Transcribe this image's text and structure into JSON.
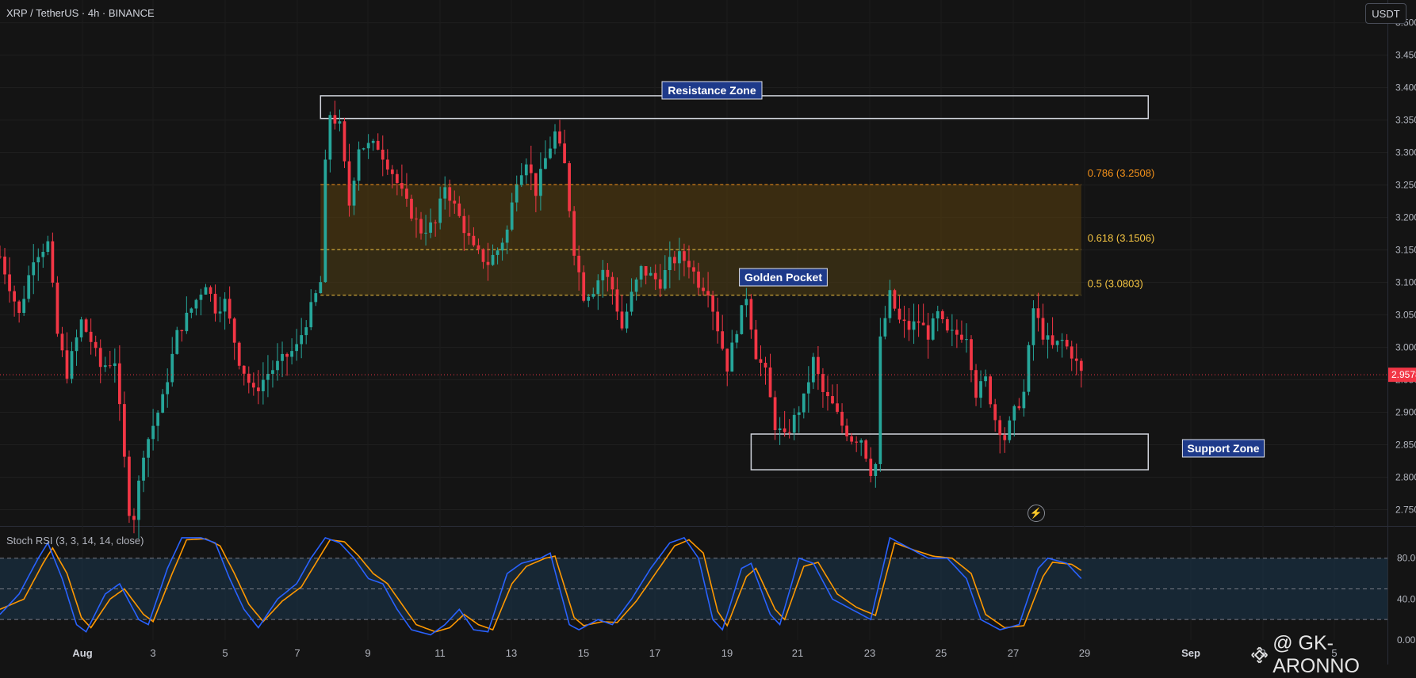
{
  "header": {
    "symbol_title": "XRP / TetherUS · 4h · BINANCE",
    "currency_button": "USDT"
  },
  "watermark": {
    "text": "@ GK-ARONNO"
  },
  "colors": {
    "up": "#26a69a",
    "down": "#f23645",
    "background": "#141414",
    "stoch_k": "#2962ff",
    "stoch_d": "#ff9800",
    "annotation_fill": "#1e3a8a"
  },
  "chart_data": [
    {
      "type": "candlestick",
      "title": "XRP / TetherUS · 4h · BINANCE",
      "x_ticks": [
        "Aug",
        "3",
        "5",
        "7",
        "9",
        "11",
        "13",
        "15",
        "17",
        "19",
        "21",
        "23",
        "25",
        "27",
        "29",
        "Sep",
        "3",
        "5"
      ],
      "y_ticks": [
        "3.5000",
        "3.4500",
        "3.4000",
        "3.3500",
        "3.3000",
        "3.2500",
        "3.2000",
        "3.1500",
        "3.1000",
        "3.0500",
        "3.0000",
        "2.9500",
        "2.9000",
        "2.8500",
        "2.8000",
        "2.7500"
      ],
      "ylim": [
        2.725,
        3.535
      ],
      "last_price": "2.9578",
      "anchors": [
        [
          0,
          3.14
        ],
        [
          4,
          3.05
        ],
        [
          7,
          3.14
        ],
        [
          10,
          3.16
        ],
        [
          12,
          3.02
        ],
        [
          14,
          2.96
        ],
        [
          17,
          3.04
        ],
        [
          19,
          3.01
        ],
        [
          21,
          2.97
        ],
        [
          24,
          2.98
        ],
        [
          27,
          2.75
        ],
        [
          28,
          2.74
        ],
        [
          30,
          2.84
        ],
        [
          34,
          2.92
        ],
        [
          37,
          3.02
        ],
        [
          40,
          3.06
        ],
        [
          43,
          3.1
        ],
        [
          45,
          3.06
        ],
        [
          47,
          3.07
        ],
        [
          50,
          2.98
        ],
        [
          53,
          2.93
        ],
        [
          56,
          2.96
        ],
        [
          59,
          2.98
        ],
        [
          62,
          3.0
        ],
        [
          65,
          3.06
        ],
        [
          67,
          3.1
        ],
        [
          68,
          3.28
        ],
        [
          69,
          3.36
        ],
        [
          71,
          3.34
        ],
        [
          73,
          3.22
        ],
        [
          75,
          3.31
        ],
        [
          79,
          3.31
        ],
        [
          82,
          3.27
        ],
        [
          85,
          3.22
        ],
        [
          88,
          3.18
        ],
        [
          91,
          3.19
        ],
        [
          93,
          3.25
        ],
        [
          96,
          3.2
        ],
        [
          99,
          3.15
        ],
        [
          102,
          3.13
        ],
        [
          104,
          3.15
        ],
        [
          106,
          3.18
        ],
        [
          108,
          3.26
        ],
        [
          110,
          3.29
        ],
        [
          112,
          3.24
        ],
        [
          114,
          3.29
        ],
        [
          116,
          3.33
        ],
        [
          118,
          3.28
        ],
        [
          120,
          3.15
        ],
        [
          122,
          3.08
        ],
        [
          124,
          3.09
        ],
        [
          126,
          3.12
        ],
        [
          128,
          3.09
        ],
        [
          130,
          3.03
        ],
        [
          132,
          3.08
        ],
        [
          134,
          3.12
        ],
        [
          136,
          3.11
        ],
        [
          138,
          3.1
        ],
        [
          140,
          3.13
        ],
        [
          142,
          3.14
        ],
        [
          144,
          3.13
        ],
        [
          146,
          3.1
        ],
        [
          148,
          3.09
        ],
        [
          150,
          3.03
        ],
        [
          152,
          2.97
        ],
        [
          154,
          3.03
        ],
        [
          156,
          3.08
        ],
        [
          158,
          2.99
        ],
        [
          160,
          2.96
        ],
        [
          162,
          2.88
        ],
        [
          164,
          2.86
        ],
        [
          166,
          2.89
        ],
        [
          168,
          2.92
        ],
        [
          170,
          2.98
        ],
        [
          172,
          2.93
        ],
        [
          174,
          2.91
        ],
        [
          176,
          2.88
        ],
        [
          178,
          2.86
        ],
        [
          180,
          2.86
        ],
        [
          182,
          2.81
        ],
        [
          183,
          2.82
        ],
        [
          184,
          3.01
        ],
        [
          186,
          3.08
        ],
        [
          188,
          3.04
        ],
        [
          190,
          3.03
        ],
        [
          192,
          3.04
        ],
        [
          194,
          3.02
        ],
        [
          196,
          3.05
        ],
        [
          198,
          3.02
        ],
        [
          200,
          3.02
        ],
        [
          202,
          3.02
        ],
        [
          204,
          2.93
        ],
        [
          206,
          2.95
        ],
        [
          208,
          2.89
        ],
        [
          210,
          2.86
        ],
        [
          212,
          2.9
        ],
        [
          214,
          2.93
        ],
        [
          216,
          3.06
        ],
        [
          218,
          3.02
        ],
        [
          220,
          3.0
        ],
        [
          222,
          3.01
        ],
        [
          224,
          2.99
        ],
        [
          226,
          2.96
        ]
      ],
      "zones": [
        {
          "label": "Resistance Zone",
          "top": 3.3875,
          "bottom": 3.3525,
          "from_index": 67,
          "to_index": 240
        },
        {
          "label": "Support Zone",
          "top": 2.8665,
          "bottom": 2.8115,
          "from_index": 157,
          "to_index": 240
        },
        {
          "label": "Golden Pocket",
          "top": 3.1506,
          "bottom": 3.0803,
          "from_index": 67,
          "to_index": 226
        }
      ],
      "fib_levels": [
        {
          "label": "0.786 (3.2508)",
          "value": 3.2508,
          "color": "#f7931a"
        },
        {
          "label": "0.618 (3.1506)",
          "value": 3.1506,
          "color": "#f5c542"
        },
        {
          "label": "0.5 (3.0803)",
          "value": 3.0803,
          "color": "#f5c542"
        }
      ],
      "x_range": [
        0,
        290
      ]
    },
    {
      "type": "line",
      "title": "Stoch RSI (3, 3, 14, 14, close)",
      "y_ticks": [
        "80.00",
        "40.00",
        "0.00"
      ],
      "ylim": [
        0,
        110
      ],
      "bands": {
        "upper": 80,
        "middle": 50,
        "lower": 20
      },
      "series": [
        {
          "k_anchors": [
            [
              0,
              25
            ],
            [
              4,
              45
            ],
            [
              8,
              80
            ],
            [
              10,
              95
            ],
            [
              13,
              60
            ],
            [
              16,
              15
            ],
            [
              18,
              8
            ],
            [
              22,
              45
            ],
            [
              25,
              55
            ],
            [
              29,
              20
            ],
            [
              31,
              15
            ],
            [
              35,
              70
            ],
            [
              38,
              100
            ],
            [
              42,
              100
            ],
            [
              45,
              95
            ],
            [
              48,
              60
            ],
            [
              51,
              30
            ],
            [
              54,
              12
            ],
            [
              58,
              40
            ],
            [
              62,
              55
            ],
            [
              65,
              80
            ],
            [
              68,
              100
            ],
            [
              71,
              95
            ],
            [
              74,
              80
            ],
            [
              77,
              60
            ],
            [
              80,
              55
            ],
            [
              83,
              30
            ],
            [
              86,
              10
            ],
            [
              90,
              5
            ],
            [
              93,
              15
            ],
            [
              96,
              30
            ],
            [
              99,
              10
            ],
            [
              102,
              8
            ],
            [
              106,
              65
            ],
            [
              109,
              75
            ],
            [
              113,
              80
            ],
            [
              115,
              85
            ],
            [
              119,
              15
            ],
            [
              121,
              10
            ],
            [
              125,
              20
            ],
            [
              128,
              15
            ],
            [
              132,
              40
            ],
            [
              136,
              70
            ],
            [
              140,
              95
            ],
            [
              143,
              100
            ],
            [
              146,
              80
            ],
            [
              149,
              20
            ],
            [
              151,
              10
            ],
            [
              155,
              70
            ],
            [
              157,
              75
            ],
            [
              161,
              25
            ],
            [
              163,
              15
            ],
            [
              167,
              80
            ],
            [
              170,
              75
            ],
            [
              174,
              40
            ],
            [
              178,
              30
            ],
            [
              182,
              20
            ],
            [
              186,
              100
            ],
            [
              190,
              90
            ],
            [
              194,
              80
            ],
            [
              198,
              80
            ],
            [
              202,
              60
            ],
            [
              205,
              20
            ],
            [
              209,
              10
            ],
            [
              213,
              15
            ],
            [
              217,
              70
            ],
            [
              219,
              80
            ],
            [
              223,
              75
            ],
            [
              226,
              60
            ]
          ]
        },
        {
          "d_anchors": [
            [
              0,
              30
            ],
            [
              5,
              40
            ],
            [
              9,
              75
            ],
            [
              11,
              90
            ],
            [
              14,
              65
            ],
            [
              17,
              22
            ],
            [
              19,
              12
            ],
            [
              23,
              40
            ],
            [
              26,
              50
            ],
            [
              30,
              25
            ],
            [
              32,
              18
            ],
            [
              36,
              65
            ],
            [
              39,
              98
            ],
            [
              43,
              99
            ],
            [
              46,
              92
            ],
            [
              49,
              65
            ],
            [
              52,
              35
            ],
            [
              55,
              18
            ],
            [
              59,
              38
            ],
            [
              63,
              52
            ],
            [
              66,
              75
            ],
            [
              69,
              98
            ],
            [
              72,
              96
            ],
            [
              75,
              82
            ],
            [
              78,
              65
            ],
            [
              81,
              55
            ],
            [
              84,
              35
            ],
            [
              87,
              15
            ],
            [
              91,
              8
            ],
            [
              94,
              12
            ],
            [
              97,
              25
            ],
            [
              100,
              15
            ],
            [
              103,
              10
            ],
            [
              107,
              55
            ],
            [
              110,
              72
            ],
            [
              114,
              80
            ],
            [
              116,
              82
            ],
            [
              120,
              22
            ],
            [
              122,
              14
            ],
            [
              126,
              18
            ],
            [
              129,
              17
            ],
            [
              133,
              38
            ],
            [
              137,
              65
            ],
            [
              141,
              92
            ],
            [
              144,
              98
            ],
            [
              147,
              85
            ],
            [
              150,
              28
            ],
            [
              152,
              14
            ],
            [
              156,
              62
            ],
            [
              158,
              70
            ],
            [
              162,
              30
            ],
            [
              164,
              20
            ],
            [
              168,
              72
            ],
            [
              171,
              76
            ],
            [
              175,
              45
            ],
            [
              179,
              32
            ],
            [
              183,
              24
            ],
            [
              187,
              95
            ],
            [
              191,
              88
            ],
            [
              195,
              82
            ],
            [
              199,
              80
            ],
            [
              203,
              65
            ],
            [
              206,
              25
            ],
            [
              210,
              12
            ],
            [
              214,
              14
            ],
            [
              218,
              62
            ],
            [
              220,
              76
            ],
            [
              224,
              74
            ],
            [
              226,
              68
            ]
          ]
        }
      ]
    }
  ]
}
